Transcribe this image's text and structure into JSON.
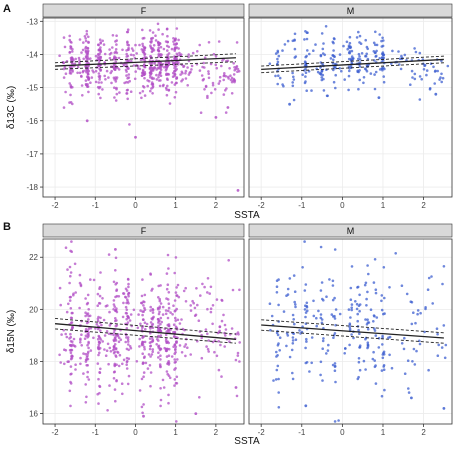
{
  "figure": {
    "panel_a_label": "A",
    "panel_b_label": "B",
    "xlabel": "SSTA",
    "colors": {
      "F": "#b24fc6",
      "M": "#3d5fd0",
      "strip": "#d9d9d9",
      "border": "#333333",
      "grid": "#ebebeb",
      "fit": "#222222"
    }
  },
  "chart_data": [
    {
      "type": "scatter",
      "panel": "A",
      "ylabel": "δ13C (‰)",
      "xlim": [
        -2.3,
        2.7
      ],
      "ylim": [
        -18.3,
        -12.9
      ],
      "xticks": [
        -2,
        -1,
        0,
        1,
        2
      ],
      "yticks": [
        -13,
        -14,
        -15,
        -16,
        -17,
        -18
      ],
      "grid": true,
      "facets": [
        {
          "name": "F",
          "point_cloud": {
            "x_range": [
              -1.9,
              2.6
            ],
            "y_center": -14.3,
            "y_spread": 0.45,
            "n": 700,
            "color": "F"
          },
          "outliers": [
            {
              "x": 2.55,
              "y": -18.1
            },
            {
              "x": 0.0,
              "y": -16.5
            },
            {
              "x": -1.2,
              "y": -16.0
            },
            {
              "x": 2.0,
              "y": -15.9
            },
            {
              "x": 2.3,
              "y": -15.6
            }
          ],
          "fit": {
            "x": [
              -2,
              2.5
            ],
            "y": [
              -14.35,
              -14.1
            ]
          },
          "ci_upper": {
            "x": [
              -2,
              2.5
            ],
            "y": [
              -14.25,
              -13.98
            ]
          },
          "ci_lower": {
            "x": [
              -2,
              2.5
            ],
            "y": [
              -14.45,
              -14.22
            ]
          }
        },
        {
          "name": "M",
          "point_cloud": {
            "x_range": [
              -1.8,
              2.6
            ],
            "y_center": -14.2,
            "y_spread": 0.4,
            "n": 280,
            "color": "M"
          },
          "outliers": [
            {
              "x": -1.3,
              "y": -15.5
            },
            {
              "x": 2.3,
              "y": -15.2
            },
            {
              "x": 0.9,
              "y": -15.3
            }
          ],
          "fit": {
            "x": [
              -2,
              2.5
            ],
            "y": [
              -14.45,
              -14.15
            ]
          },
          "ci_upper": {
            "x": [
              -2,
              2.5
            ],
            "y": [
              -14.35,
              -14.05
            ]
          },
          "ci_lower": {
            "x": [
              -2,
              2.5
            ],
            "y": [
              -14.55,
              -14.25
            ]
          }
        }
      ]
    },
    {
      "type": "scatter",
      "panel": "B",
      "ylabel": "δ15N (‰)",
      "xlim": [
        -2.3,
        2.7
      ],
      "ylim": [
        15.6,
        22.7
      ],
      "xticks": [
        -2,
        -1,
        0,
        1,
        2
      ],
      "yticks": [
        16,
        18,
        20,
        22
      ],
      "grid": true,
      "facets": [
        {
          "name": "F",
          "point_cloud": {
            "x_range": [
              -1.9,
              2.6
            ],
            "y_center": 19.1,
            "y_spread": 1.1,
            "n": 700,
            "color": "F"
          },
          "outliers": [
            {
              "x": -0.5,
              "y": 22.3
            },
            {
              "x": 1.5,
              "y": 16.0
            },
            {
              "x": 0.2,
              "y": 15.9
            },
            {
              "x": 2.5,
              "y": 17.0
            }
          ],
          "fit": {
            "x": [
              -2,
              2.5
            ],
            "y": [
              19.45,
              18.85
            ]
          },
          "ci_upper": {
            "x": [
              -2,
              2.5
            ],
            "y": [
              19.65,
              19.05
            ]
          },
          "ci_lower": {
            "x": [
              -2,
              2.5
            ],
            "y": [
              19.25,
              18.7
            ]
          }
        },
        {
          "name": "M",
          "point_cloud": {
            "x_range": [
              -1.8,
              2.6
            ],
            "y_center": 19.3,
            "y_spread": 1.2,
            "n": 280,
            "color": "M"
          },
          "outliers": [
            {
              "x": -0.9,
              "y": 16.3
            },
            {
              "x": 2.5,
              "y": 16.2
            },
            {
              "x": 1.7,
              "y": 16.6
            }
          ],
          "fit": {
            "x": [
              -2,
              2.5
            ],
            "y": [
              19.4,
              18.9
            ]
          },
          "ci_upper": {
            "x": [
              -2,
              2.5
            ],
            "y": [
              19.6,
              19.1
            ]
          },
          "ci_lower": {
            "x": [
              -2,
              2.5
            ],
            "y": [
              19.2,
              18.7
            ]
          }
        }
      ]
    }
  ]
}
